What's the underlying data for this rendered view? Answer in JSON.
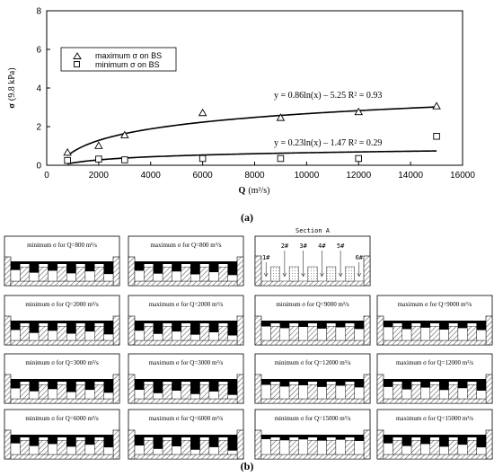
{
  "chart_data": [
    {
      "type": "scatter",
      "panel_label": "(a)",
      "xlabel": "Q",
      "xlabel_unit": "(m³/s)",
      "ylabel": "σ",
      "ylabel_unit": "(9.8 kPa)",
      "xlim": [
        0,
        16000
      ],
      "ylim": [
        0,
        8
      ],
      "xticks": [
        0,
        2000,
        4000,
        6000,
        8000,
        10000,
        12000,
        14000,
        16000
      ],
      "yticks": [
        0,
        2,
        4,
        6,
        8
      ],
      "legend_position": "top-left",
      "series": [
        {
          "name": "maximum  σ on BS",
          "marker": "triangle",
          "x": [
            800,
            2000,
            3000,
            6000,
            9000,
            12000,
            15000
          ],
          "y": [
            0.65,
            1.0,
            1.55,
            2.7,
            2.45,
            2.75,
            3.05
          ]
        },
        {
          "name": "minimum  σ on BS",
          "marker": "square",
          "x": [
            800,
            2000,
            3000,
            6000,
            9000,
            12000,
            15000
          ],
          "y": [
            0.25,
            0.32,
            0.28,
            0.35,
            0.35,
            0.35,
            1.5
          ]
        }
      ],
      "trendlines": [
        {
          "a": 0.86,
          "b": -5.25,
          "label": "y = 0.86ln(x) – 5.25   R² = 0.93"
        },
        {
          "a": 0.23,
          "b": -1.47,
          "label": "y = 0.23ln(x) – 1.47   R² = 0.29"
        }
      ]
    },
    {
      "type": "diagram",
      "panel_label": "(b)",
      "section": {
        "title": "Section A",
        "bays": [
          "1#",
          "2#",
          "3#",
          "4#",
          "5#",
          "6#"
        ]
      },
      "panels": [
        {
          "title": "minimum  σ for Q=800 m³/s",
          "fill": 0.55
        },
        {
          "title": "maximum  σ for Q=800 m³/s",
          "fill": 0.6
        },
        {
          "title": "minimum  σ for Q=2000 m³/s",
          "fill": 0.6
        },
        {
          "title": "maximum  σ for Q=2000 m³/s",
          "fill": 0.65
        },
        {
          "title": "minimum  σ for Q=9000 m³/s",
          "fill": 0.35
        },
        {
          "title": "maximum  σ for Q=9000 m³/s",
          "fill": 0.4
        },
        {
          "title": "minimum  σ for Q=3000 m³/s",
          "fill": 0.6
        },
        {
          "title": "maximum  σ for Q=3000 m³/s",
          "fill": 0.7
        },
        {
          "title": "minimum  σ for Q=12000 m³/s",
          "fill": 0.35
        },
        {
          "title": "maximum  σ for Q=12000 m³/s",
          "fill": 0.5
        },
        {
          "title": "minimum  σ for Q=6000 m³/s",
          "fill": 0.55
        },
        {
          "title": "maximum  σ for Q=6000 m³/s",
          "fill": 0.7
        },
        {
          "title": "minimum  σ for Q=15000 m³/s",
          "fill": 0.25
        },
        {
          "title": "maximum  σ for Q=15000 m³/s",
          "fill": 0.55
        }
      ]
    }
  ]
}
